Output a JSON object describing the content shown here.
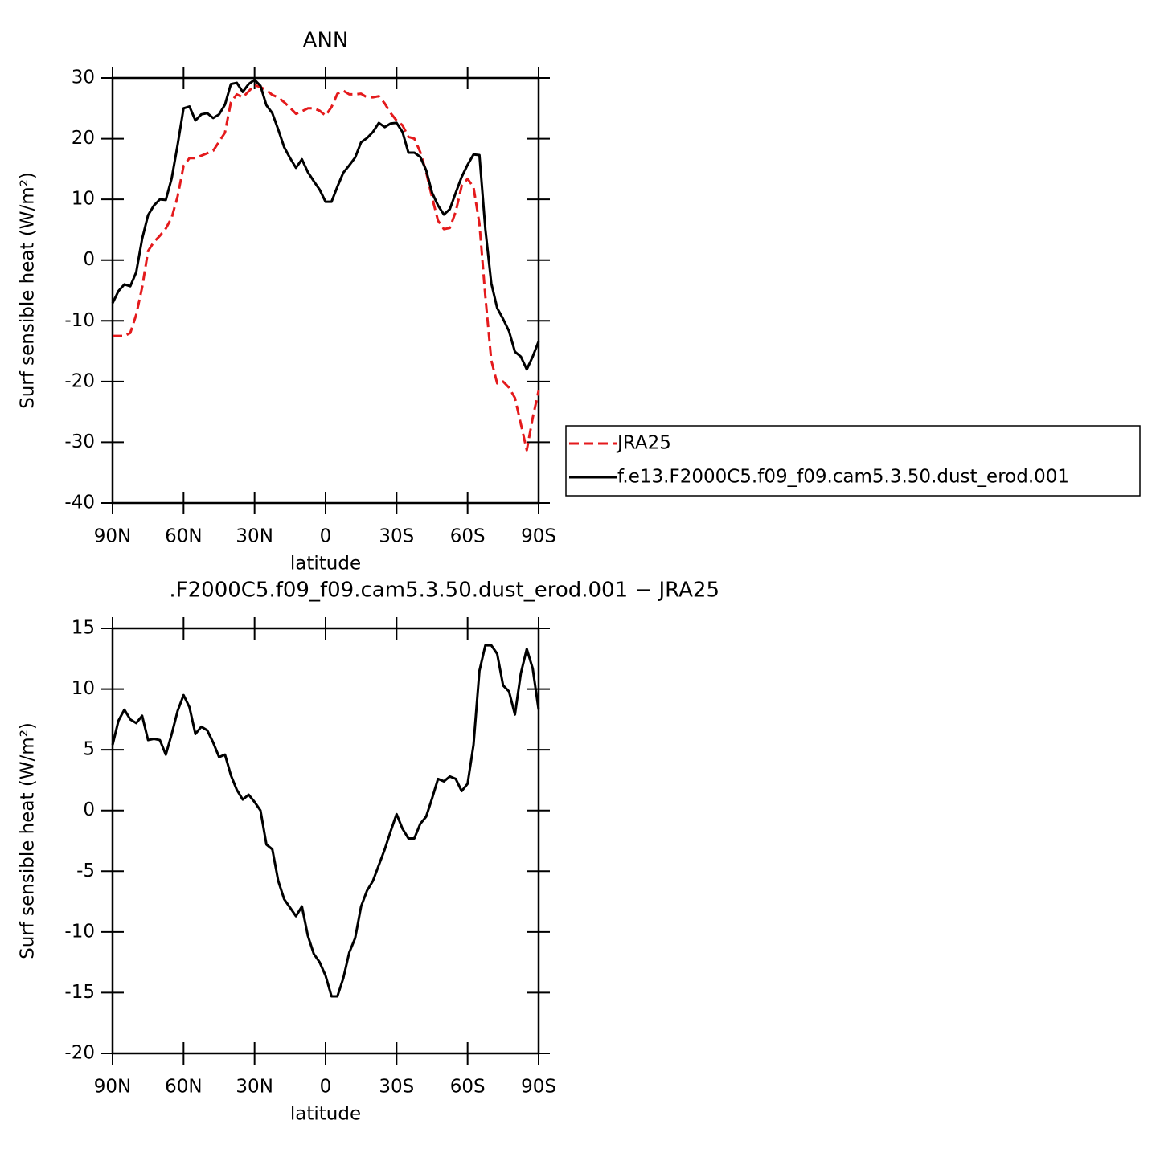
{
  "chart_data": [
    {
      "type": "line",
      "title": "ANN",
      "x_label": "latitude",
      "y_label": "Surf sensible heat (W/m²)",
      "x": [
        90,
        87.5,
        85,
        82.5,
        80,
        77.5,
        75,
        72.5,
        70,
        67.5,
        65,
        62.5,
        60,
        57.5,
        55,
        52.5,
        50,
        47.5,
        45,
        42.5,
        40,
        37.5,
        35,
        32.5,
        30,
        27.5,
        25,
        22.5,
        20,
        17.5,
        15,
        12.5,
        10,
        7.5,
        5,
        2.5,
        0,
        -2.5,
        -5,
        -7.5,
        -10,
        -12.5,
        -15,
        -17.5,
        -20,
        -22.5,
        -25,
        -27.5,
        -30,
        -32.5,
        -35,
        -37.5,
        -40,
        -42.5,
        -45,
        -47.5,
        -50,
        -52.5,
        -55,
        -57.5,
        -60,
        -62.5,
        -65,
        -67.5,
        -70,
        -72.5,
        -75,
        -77.5,
        -80,
        -82.5,
        -85,
        -87.5,
        -90
      ],
      "series": [
        {
          "name": "JRA25",
          "color": "#e41a1c",
          "dash": "dashed",
          "values": [
            -12.5,
            -12.5,
            -12.5,
            -12,
            -9,
            -4.5,
            1.5,
            3,
            4,
            5.2,
            7,
            10.5,
            15.5,
            16.8,
            16.8,
            17.2,
            17.6,
            18,
            19.5,
            21,
            26,
            27.3,
            26.8,
            27.8,
            28.8,
            28.5,
            28,
            27.2,
            26.8,
            26,
            25.1,
            24.1,
            24.5,
            25,
            25,
            24.6,
            23.8,
            25.2,
            27.4,
            27.9,
            27.3,
            27.3,
            27.4,
            26.8,
            26.8,
            27,
            25.8,
            24.2,
            23,
            22.2,
            20.3,
            20,
            17.8,
            14.5,
            10.3,
            6.5,
            5.1,
            5.3,
            8,
            12.2,
            13.4,
            12,
            6,
            -6,
            -16.5,
            -20.3,
            -20,
            -21,
            -22.7,
            -27,
            -31.3,
            -26,
            -21.5
          ]
        },
        {
          "name": "f.e13.F2000C5.f09_f09.cam5.3.50.dust_erod.001",
          "color": "#000000",
          "dash": "solid",
          "values": [
            -7.1,
            -5.1,
            -4,
            -4.3,
            -2,
            3.5,
            7.4,
            9,
            10,
            9.9,
            13.5,
            19,
            25,
            25.3,
            23,
            24,
            24.2,
            23.4,
            24,
            25.6,
            29,
            29.2,
            27.7,
            29,
            29.7,
            28.7,
            25.5,
            24.2,
            21.5,
            18.6,
            16.8,
            15.2,
            16.6,
            14.5,
            13,
            11.6,
            9.6,
            9.6,
            12.1,
            14.4,
            15.6,
            16.9,
            19.4,
            20.1,
            21.1,
            22.6,
            21.9,
            22.5,
            22.6,
            21.1,
            17.7,
            17.7,
            17,
            14.8,
            11.1,
            9,
            7.5,
            8.4,
            11.1,
            13.7,
            15.7,
            17.4,
            17.3,
            5.1,
            -3.8,
            -7.9,
            -9.7,
            -11.7,
            -15.1,
            -15.9,
            -18,
            -15.9,
            -13.4
          ]
        }
      ],
      "xlim": [
        90,
        -90
      ],
      "xticks": [
        {
          "value": 90,
          "label": "90N"
        },
        {
          "value": 60,
          "label": "60N"
        },
        {
          "value": 30,
          "label": "30N"
        },
        0,
        {
          "value": -30,
          "label": "30S"
        },
        {
          "value": -60,
          "label": "60S"
        },
        {
          "value": -90,
          "label": "90S"
        }
      ],
      "ylim": [
        -40,
        30
      ],
      "yticks": [
        -40,
        -30,
        -20,
        -10,
        0,
        10,
        20,
        30
      ],
      "legend": "right"
    },
    {
      "type": "line",
      "title": ".F2000C5.f09_f09.cam5.3.50.dust_erod.001 − JRA25",
      "x_label": "latitude",
      "y_label": "Surf sensible heat (W/m²)",
      "x": [
        90,
        87.5,
        85,
        82.5,
        80,
        77.5,
        75,
        72.5,
        70,
        67.5,
        65,
        62.5,
        60,
        57.5,
        55,
        52.5,
        50,
        47.5,
        45,
        42.5,
        40,
        37.5,
        35,
        32.5,
        30,
        27.5,
        25,
        22.5,
        20,
        17.5,
        15,
        12.5,
        10,
        7.5,
        5,
        2.5,
        0,
        -2.5,
        -5,
        -7.5,
        -10,
        -12.5,
        -15,
        -17.5,
        -20,
        -22.5,
        -25,
        -27.5,
        -30,
        -32.5,
        -35,
        -37.5,
        -40,
        -42.5,
        -45,
        -47.5,
        -50,
        -52.5,
        -55,
        -57.5,
        -60,
        -62.5,
        -65,
        -67.5,
        -70,
        -72.5,
        -75,
        -77.5,
        -80,
        -82.5,
        -85,
        -87.5,
        -90
      ],
      "color": "#000000",
      "values": [
        5.4,
        7.4,
        8.3,
        7.5,
        7.2,
        7.8,
        5.8,
        5.9,
        5.8,
        4.6,
        6.3,
        8.2,
        9.5,
        8.5,
        6.3,
        6.9,
        6.6,
        5.6,
        4.4,
        4.6,
        2.9,
        1.7,
        0.9,
        1.3,
        0.7,
        0,
        -2.8,
        -3.2,
        -5.8,
        -7.3,
        -8,
        -8.7,
        -7.9,
        -10.3,
        -11.8,
        -12.5,
        -13.6,
        -15.3,
        -15.3,
        -13.8,
        -11.7,
        -10.5,
        -7.9,
        -6.6,
        -5.8,
        -4.5,
        -3.2,
        -1.7,
        -0.3,
        -1.5,
        -2.3,
        -2.3,
        -1.1,
        -0.5,
        1,
        2.6,
        2.4,
        2.8,
        2.6,
        1.6,
        2.2,
        5.4,
        11.5,
        13.6,
        13.6,
        12.9,
        10.3,
        9.8,
        7.9,
        11.3,
        13.3,
        11.7,
        8.3
      ],
      "xlim": [
        90,
        -90
      ],
      "xticks": [
        {
          "value": 90,
          "label": "90N"
        },
        {
          "value": 60,
          "label": "60N"
        },
        {
          "value": 30,
          "label": "30N"
        },
        0,
        {
          "value": -30,
          "label": "30S"
        },
        {
          "value": -60,
          "label": "60S"
        },
        {
          "value": -90,
          "label": "90S"
        }
      ],
      "ylim": [
        -20,
        15
      ],
      "yticks": [
        -20,
        -15,
        -10,
        -5,
        0,
        5,
        10,
        15
      ]
    }
  ]
}
